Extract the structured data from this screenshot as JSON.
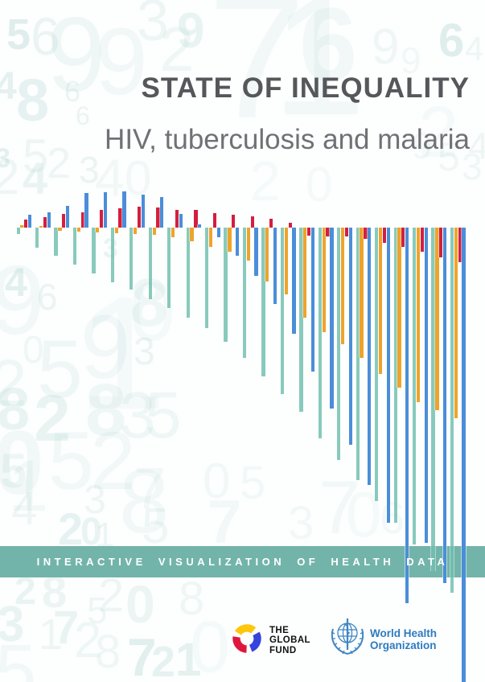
{
  "title": "STATE OF INEQUALITY",
  "subtitle": "HIV, tuberculosis and malaria",
  "banner": {
    "text": "INTERACTIVE VISUALIZATION OF HEALTH DATA",
    "bg_color": "#73b4aa",
    "text_color": "#ffffff"
  },
  "logos": {
    "global_fund": {
      "lines": [
        "THE",
        "GLOBAL",
        "FUND"
      ],
      "swirl_colors": {
        "red": "#e0173c",
        "yellow": "#ffc60b",
        "blue": "#3444dc"
      },
      "text_color": "#101010"
    },
    "who": {
      "lines": [
        "World Health",
        "Organization"
      ],
      "color": "#2e7bc0",
      "emblem_color": "#3e86c4"
    }
  },
  "chart_data": {
    "type": "bar",
    "title": "",
    "xlabel": "",
    "ylabel": "",
    "grid": false,
    "legend": "none",
    "orientation": "vertical grouped bars above/below a common baseline (decorative cover graphic)",
    "baseline_y": 283,
    "groups": 24,
    "units": "pixel length relative to baseline; positive = upward, negative = downward",
    "series": [
      {
        "name": "teal",
        "color": "#6fbfae",
        "values": [
          -8,
          -25,
          -35,
          -46,
          -57,
          -68,
          -77,
          -89,
          -100,
          -112,
          -125,
          -142,
          -162,
          -185,
          -207,
          -229,
          -262,
          -289,
          -314,
          -340,
          -367,
          -394,
          -427,
          -454
        ]
      },
      {
        "name": "amber",
        "color": "#eea42b",
        "values": [
          3,
          2,
          -4,
          -5,
          -6,
          -7,
          -8,
          -9,
          -12,
          -17,
          -24,
          -30,
          -41,
          -67,
          -83,
          -112,
          -130,
          -145,
          -162,
          -182,
          -199,
          -217,
          -227,
          -237
        ]
      },
      {
        "name": "red",
        "color": "#d31f3f",
        "values": [
          10,
          13,
          17,
          19,
          22,
          24,
          26,
          25,
          22,
          22,
          18,
          16,
          14,
          11,
          6,
          -10,
          -11,
          -11,
          -14,
          -19,
          -24,
          -30,
          -37,
          -43
        ]
      },
      {
        "name": "blue",
        "color": "#4a8ed9",
        "values": [
          16,
          19,
          27,
          43,
          44,
          45,
          41,
          38,
          17,
          4,
          -12,
          -35,
          -60,
          -95,
          -132,
          -179,
          -225,
          -270,
          -320,
          -367,
          -467,
          -392,
          -442,
          -577
        ]
      }
    ]
  },
  "background_digits": [
    [
      "5",
      8,
      16,
      54,
      700,
      0.2
    ],
    [
      "6",
      38,
      12,
      66,
      400,
      0.12
    ],
    [
      "9",
      58,
      2,
      132,
      400,
      0.09
    ],
    [
      "9",
      118,
      18,
      118,
      400,
      0.08
    ],
    [
      "3",
      170,
      -10,
      72,
      400,
      0.1
    ],
    [
      "2",
      198,
      22,
      78,
      400,
      0.09
    ],
    [
      "9",
      220,
      8,
      62,
      700,
      0.13
    ],
    [
      "7",
      258,
      -40,
      220,
      400,
      0.07
    ],
    [
      "1",
      338,
      -35,
      210,
      400,
      0.07
    ],
    [
      "6",
      372,
      -10,
      130,
      700,
      0.08
    ],
    [
      "9",
      462,
      28,
      62,
      400,
      0.09
    ],
    [
      "9",
      498,
      52,
      46,
      400,
      0.08
    ],
    [
      "4",
      578,
      40,
      42,
      400,
      0.1
    ],
    [
      "6",
      545,
      22,
      58,
      700,
      0.2
    ],
    [
      "4",
      -6,
      84,
      48,
      700,
      0.16
    ],
    [
      "8",
      20,
      88,
      74,
      700,
      0.15
    ],
    [
      "6",
      80,
      96,
      36,
      400,
      0.12
    ],
    [
      "6",
      94,
      128,
      32,
      400,
      0.12
    ],
    [
      "2",
      520,
      120,
      90,
      400,
      0.06
    ],
    [
      "4",
      582,
      158,
      46,
      400,
      0.1
    ],
    [
      "9",
      512,
      158,
      46,
      400,
      0.08
    ],
    [
      "5",
      544,
      170,
      50,
      400,
      0.09
    ],
    [
      "3",
      574,
      184,
      46,
      400,
      0.09
    ],
    [
      "5",
      28,
      166,
      58,
      400,
      0.1
    ],
    [
      "2",
      58,
      176,
      54,
      400,
      0.1
    ],
    [
      "3",
      -6,
      180,
      34,
      700,
      0.18
    ],
    [
      "2",
      -10,
      190,
      62,
      400,
      0.1
    ],
    [
      "4",
      28,
      194,
      56,
      700,
      0.13
    ],
    [
      "3",
      98,
      188,
      46,
      500,
      0.12
    ],
    [
      "4",
      118,
      188,
      66,
      400,
      0.08
    ],
    [
      "0",
      155,
      192,
      60,
      400,
      0.08
    ],
    [
      "2",
      310,
      190,
      70,
      400,
      0.06
    ],
    [
      "0",
      380,
      200,
      60,
      400,
      0.06
    ],
    [
      "4",
      6,
      326,
      50,
      700,
      0.18
    ],
    [
      "9",
      -12,
      312,
      122,
      400,
      0.08
    ],
    [
      "6",
      46,
      346,
      46,
      400,
      0.12
    ],
    [
      "1",
      96,
      340,
      200,
      400,
      0.06
    ],
    [
      "9",
      100,
      376,
      112,
      400,
      0.07
    ],
    [
      "8",
      162,
      334,
      84,
      700,
      0.09
    ],
    [
      "0",
      160,
      336,
      104,
      400,
      0.06
    ],
    [
      "3",
      128,
      292,
      34,
      700,
      0.14
    ],
    [
      "0",
      28,
      412,
      48,
      400,
      0.09
    ],
    [
      "5",
      46,
      408,
      102,
      400,
      0.09
    ],
    [
      "3",
      166,
      414,
      48,
      500,
      0.12
    ],
    [
      "2",
      -12,
      436,
      82,
      400,
      0.09
    ],
    [
      "8",
      -4,
      472,
      74,
      700,
      0.13
    ],
    [
      "2",
      42,
      480,
      82,
      700,
      0.13
    ],
    [
      "8",
      106,
      464,
      92,
      700,
      0.09
    ],
    [
      "3",
      148,
      476,
      82,
      400,
      0.09
    ],
    [
      "5",
      180,
      476,
      82,
      500,
      0.09
    ],
    [
      "0",
      -8,
      520,
      112,
      700,
      0.08
    ],
    [
      "5",
      60,
      522,
      102,
      400,
      0.08
    ],
    [
      "2",
      112,
      522,
      102,
      400,
      0.08
    ],
    [
      "1",
      10,
      560,
      90,
      400,
      0.08
    ],
    [
      "5",
      0,
      556,
      60,
      700,
      0.1
    ],
    [
      "4",
      14,
      604,
      58,
      400,
      0.1
    ],
    [
      "3",
      104,
      596,
      50,
      400,
      0.1
    ],
    [
      "2",
      72,
      630,
      56,
      700,
      0.15
    ],
    [
      "0",
      100,
      638,
      48,
      700,
      0.13
    ],
    [
      "1",
      118,
      644,
      44,
      400,
      0.11
    ],
    [
      "8",
      148,
      568,
      112,
      400,
      0.07
    ],
    [
      "7",
      166,
      572,
      72,
      400,
      0.08
    ],
    [
      "5",
      176,
      624,
      62,
      400,
      0.09
    ],
    [
      "0",
      252,
      568,
      62,
      400,
      0.07
    ],
    [
      "5",
      298,
      572,
      58,
      400,
      0.07
    ],
    [
      "7",
      258,
      612,
      76,
      700,
      0.07
    ],
    [
      "3",
      358,
      622,
      58,
      400,
      0.07
    ],
    [
      "7",
      396,
      584,
      94,
      400,
      0.07
    ],
    [
      "0",
      430,
      600,
      80,
      400,
      0.06
    ],
    [
      "6",
      472,
      616,
      56,
      400,
      0.07
    ],
    [
      "2",
      18,
      712,
      48,
      700,
      0.13
    ],
    [
      "8",
      52,
      708,
      56,
      700,
      0.11
    ],
    [
      "2",
      122,
      712,
      58,
      400,
      0.1
    ],
    [
      "0",
      156,
      718,
      66,
      700,
      0.11
    ],
    [
      "5",
      108,
      736,
      46,
      400,
      0.1
    ],
    [
      "8",
      222,
      716,
      58,
      400,
      0.09
    ],
    [
      "3",
      -4,
      746,
      62,
      700,
      0.13
    ],
    [
      "1",
      48,
      762,
      54,
      400,
      0.1
    ],
    [
      "7",
      66,
      752,
      58,
      700,
      0.13
    ],
    [
      "2",
      92,
      766,
      62,
      400,
      0.09
    ],
    [
      "8",
      118,
      782,
      58,
      400,
      0.09
    ],
    [
      "7",
      158,
      784,
      66,
      700,
      0.19
    ],
    [
      "2",
      188,
      796,
      54,
      700,
      0.15
    ],
    [
      "1",
      218,
      792,
      58,
      700,
      0.17
    ],
    [
      "5",
      -6,
      788,
      92,
      400,
      0.08
    ],
    [
      "0",
      236,
      760,
      90,
      400,
      0.06
    ]
  ]
}
